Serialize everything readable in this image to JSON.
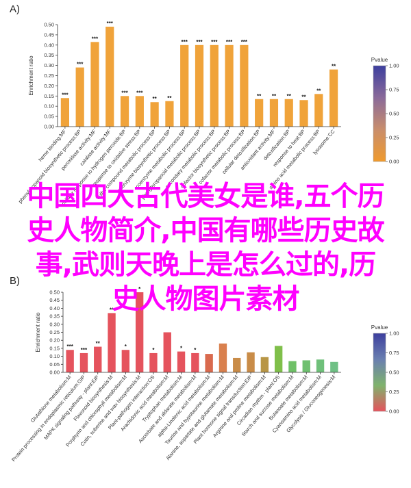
{
  "overlay_lines": [
    "中国四大古代美女是谁,五个历",
    "史人物简介,中国有哪些历史故",
    "事,武则天晚上是怎么过的,历",
    "史人物图片素材"
  ],
  "chart_data": [
    {
      "panel": "A)",
      "type": "bar",
      "ylabel": "Enrichment ratio",
      "ylim": [
        0,
        0.5
      ],
      "yticks": [
        "0.00",
        "0.05",
        "0.10",
        "0.15",
        "0.20",
        "0.25",
        "0.30",
        "0.35",
        "0.40",
        "0.45",
        "0.50"
      ],
      "categories": [
        "heme binding:MF",
        "phenylpropanoid biosynthetic process:BP",
        "peroxidase activity:MF",
        "catalase activity:MF",
        "cellular response to hydrogen peroxide:BP",
        "response to oxidative stress:BP",
        "sulfur compound metabolic process:BP",
        "coenzyme biosynthetic process:BP",
        "coenzyme metabolic process:BP",
        "phenylpropanoid metabolic process:BP",
        "secondary metabolic process:BP",
        "cofactor biosynthetic process:BP",
        "cofactor metabolic process:BP",
        "cellular detoxification:BP",
        "antioxidant activity:MF",
        "detoxification:BP",
        "response to heat:BP",
        "amino acid metabolic process:BP",
        "lysosome:CC"
      ],
      "values": [
        0.14,
        0.29,
        0.415,
        0.49,
        0.15,
        0.15,
        0.12,
        0.125,
        0.4,
        0.4,
        0.4,
        0.4,
        0.4,
        0.135,
        0.135,
        0.135,
        0.13,
        0.16,
        0.28
      ],
      "significance": [
        "***",
        "***",
        "***",
        "***",
        "***",
        "***",
        "**",
        "**",
        "***",
        "***",
        "***",
        "***",
        "***",
        "**",
        "**",
        "**",
        "**",
        "**",
        "**"
      ],
      "bar_color": "#f0a33a",
      "legend": {
        "title": "Pvalue",
        "ticks": [
          "1.00",
          "0.75",
          "0.50",
          "0.25",
          "0.00"
        ],
        "colors": [
          "#3d3f9e",
          "#8a6a9a",
          "#c98e6c",
          "#ef9a2e"
        ]
      }
    },
    {
      "panel": "B)",
      "type": "bar",
      "ylabel": "Enrichment ratio",
      "ylim": [
        0,
        0.5
      ],
      "yticks": [
        "0.00",
        "0.05",
        "0.10",
        "0.15",
        "0.20",
        "0.25",
        "0.30",
        "0.35",
        "0.40",
        "0.45",
        "0.50"
      ],
      "categories": [
        "Glutathione metabolism:M",
        "Protein processing in endoplasmic reticulum:GIP",
        "MAPK signaling pathway - plant:EIP",
        "Flavonoid biosynthesis:M",
        "Porphyrin and chlorophyll metabolism:M",
        "Cutin, suberine and wax biosynthesis:M",
        "Plant-pathogen interaction:OS",
        "Arachidonic acid metabolism:M",
        "Tryptophan metabolism:M",
        "Ascorbate and aldarate metabolism:M",
        "alpha-Linolenic acid metabolism:M",
        "Taurine and hypotaurine metabolism:M",
        "Alanine, aspartate and glutamate metabolism:M",
        "Plant hormone signal transduction:EIP",
        "Arginine and proline metabolism:M",
        "Circadian rhythm - plant:OS",
        "Starch and sucrose metabolism:M",
        "Butanoate metabolism:M",
        "Cyanoamino acid metabolism:M",
        "Glycolysis / Gluconeogenesis:M"
      ],
      "values": [
        0.14,
        0.12,
        0.16,
        0.37,
        0.14,
        0.5,
        0.12,
        0.25,
        0.13,
        0.12,
        0.115,
        0.18,
        0.09,
        0.125,
        0.095,
        0.165,
        0.07,
        0.075,
        0.08,
        0.065
      ],
      "significance": [
        "***",
        "***",
        "**",
        "**",
        "*",
        "*",
        "*",
        "",
        "*",
        "*",
        "",
        "",
        "",
        "",
        "",
        "",
        "",
        "",
        "",
        ""
      ],
      "bar_colors": [
        "#e5535d",
        "#e5535d",
        "#e5535d",
        "#e5535d",
        "#e5535d",
        "#e5535d",
        "#e5535d",
        "#e5535d",
        "#e5535d",
        "#e5535d",
        "#d96a4e",
        "#d9804e",
        "#c98c48",
        "#c98c48",
        "#b89646",
        "#7fbf4a",
        "#6fc067",
        "#6fc070",
        "#6fc07a",
        "#6fc085"
      ],
      "legend": {
        "title": "Pvalue",
        "ticks": [
          "1.00",
          "0.75",
          "0.50",
          "0.25",
          "0.00"
        ],
        "colors": [
          "#3d3f9e",
          "#6a7fb0",
          "#7fb36d",
          "#e5535d"
        ]
      }
    }
  ]
}
